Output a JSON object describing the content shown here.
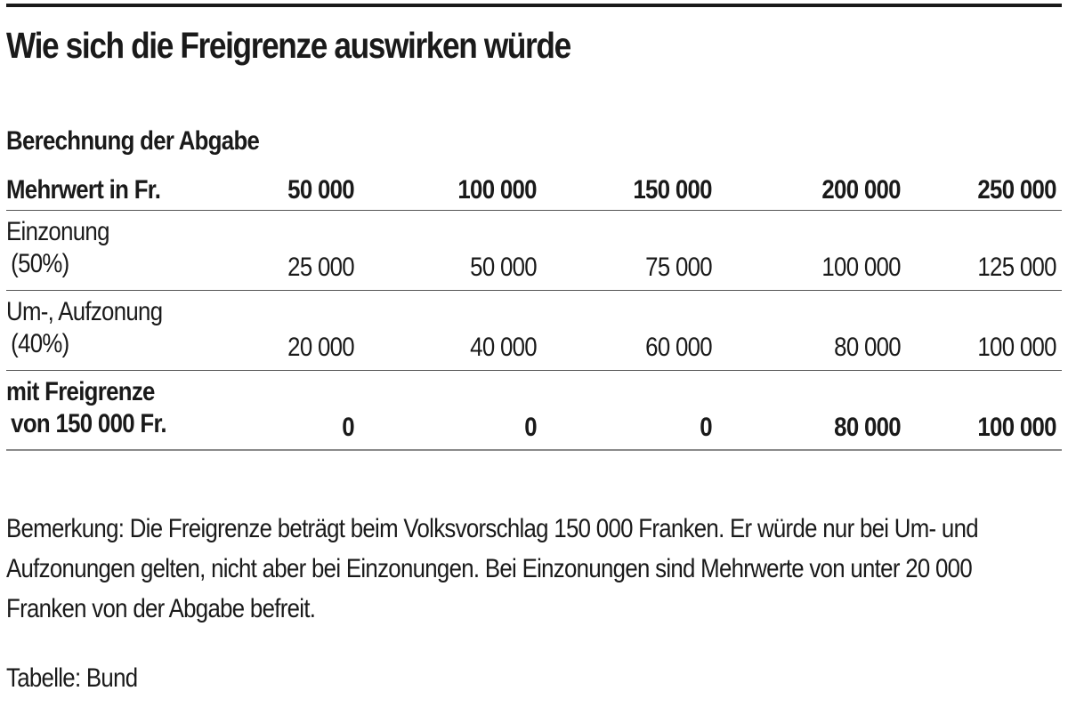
{
  "title": "Wie sich die Freigrenze auswirken würde",
  "subtitle": "Berechnung der Abgabe",
  "table": {
    "header": {
      "label": "Mehrwert in Fr.",
      "columns": [
        "50 000",
        "100 000",
        "150 000",
        "200 000",
        "250 000"
      ]
    },
    "rows": [
      {
        "label_line1": "Einzonung",
        "label_line2": "(50%)",
        "bold": false,
        "values": [
          "25 000",
          "50 000",
          "75 000",
          "100 000",
          "125 000"
        ]
      },
      {
        "label_line1": "Um-, Aufzonung",
        "label_line2": "(40%)",
        "bold": false,
        "values": [
          "20 000",
          "40 000",
          "60 000",
          "80 000",
          "100 000"
        ]
      },
      {
        "label_line1": "mit Freigrenze",
        "label_line2": "von 150 000 Fr.",
        "bold": true,
        "values": [
          "0",
          "0",
          "0",
          "80 000",
          "100 000"
        ]
      }
    ]
  },
  "note": "Bemerkung: Die Freigrenze beträgt beim Volksvorschlag 150 000 Franken. Er würde nur bei Um- und Aufzonungen gelten, nicht aber bei Einzonungen. Bei Einzonungen sind Mehrwerte von unter 20 000 Franken von der Abgabe befreit.",
  "source": "Tabelle: Bund",
  "colors": {
    "text": "#1a1a1a",
    "rule": "#555555",
    "background": "#ffffff"
  }
}
